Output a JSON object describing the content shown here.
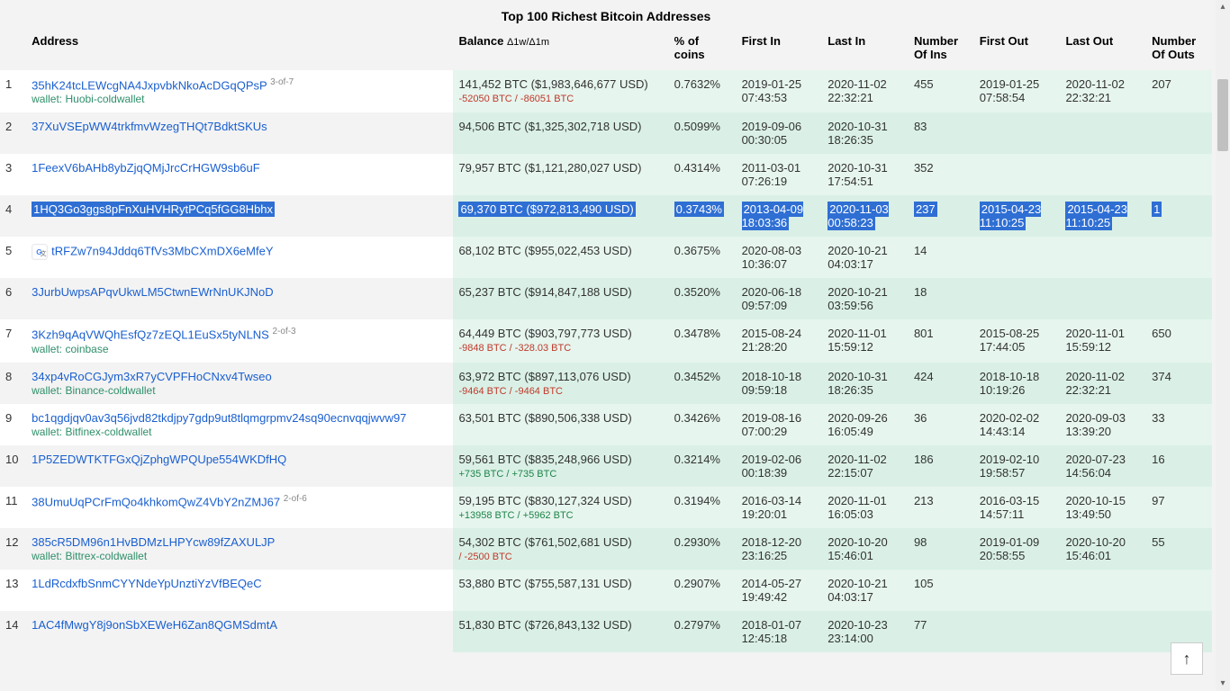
{
  "title": "Top 100 Richest Bitcoin Addresses",
  "columns": {
    "idx": "",
    "address": "Address",
    "balance": "Balance",
    "balance_sub": "Δ1w/Δ1m",
    "pct": "% of coins",
    "first_in": "First In",
    "last_in": "Last In",
    "n_ins": "Number Of Ins",
    "first_out": "First Out",
    "last_out": "Last Out",
    "n_outs": "Number Of Outs"
  },
  "colors": {
    "link": "#1a5fcf",
    "wallet": "#2f8f6a",
    "delta_neg": "#c0392b",
    "delta_pos": "#1e8449",
    "highlight_bg": "#2f6fd4",
    "highlight_fg": "#ffffff",
    "row_odd": "#ffffff",
    "row_even": "#f3f3f3",
    "tint_odd": "#e6f5ee",
    "tint_even": "#daf0e6"
  },
  "highlight_row_index": 3,
  "rows": [
    {
      "n": "1",
      "address": "35hK24tcLEWcgNA4JxpvbkNkoAcDGqQPsP",
      "addr_suffix": "3-of-7",
      "wallet": "wallet: Huobi-coldwallet",
      "balance": "141,452 BTC ($1,983,646,677 USD)",
      "delta": "-52050 BTC / -86051 BTC",
      "delta_sign": "neg",
      "pct": "0.7632%",
      "first_in": "2019-01-25 07:43:53",
      "last_in": "2020-11-02 22:32:21",
      "n_ins": "455",
      "first_out": "2019-01-25 07:58:54",
      "last_out": "2020-11-02 22:32:21",
      "n_outs": "207"
    },
    {
      "n": "2",
      "address": "37XuVSEpWW4trkfmvWzegTHQt7BdktSKUs",
      "balance": "94,506 BTC ($1,325,302,718 USD)",
      "pct": "0.5099%",
      "first_in": "2019-09-06 00:30:05",
      "last_in": "2020-10-31 18:26:35",
      "n_ins": "83"
    },
    {
      "n": "3",
      "address": "1FeexV6bAHb8ybZjqQMjJrcCrHGW9sb6uF",
      "balance": "79,957 BTC ($1,121,280,027 USD)",
      "pct": "0.4314%",
      "first_in": "2011-03-01 07:26:19",
      "last_in": "2020-10-31 17:54:51",
      "n_ins": "352"
    },
    {
      "n": "4",
      "address": "1HQ3Go3ggs8pFnXuHVHRytPCq5fGG8Hbhx",
      "balance": "69,370 BTC ($972,813,490 USD)",
      "pct": "0.3743%",
      "first_in": "2013-04-09 18:03:36",
      "last_in": "2020-11-03 00:58:23",
      "n_ins": "237",
      "first_out": "2015-04-23 11:10:25",
      "last_out": "2015-04-23 11:10:25",
      "n_outs": "1"
    },
    {
      "n": "5",
      "address": "tRFZw7n94Jddq6TfVs3MbCXmDX6eMfeY",
      "has_icon": true,
      "balance": "68,102 BTC ($955,022,453 USD)",
      "pct": "0.3675%",
      "first_in": "2020-08-03 10:36:07",
      "last_in": "2020-10-21 04:03:17",
      "n_ins": "14"
    },
    {
      "n": "6",
      "address": "3JurbUwpsAPqvUkwLM5CtwnEWrNnUKJNoD",
      "balance": "65,237 BTC ($914,847,188 USD)",
      "pct": "0.3520%",
      "first_in": "2020-06-18 09:57:09",
      "last_in": "2020-10-21 03:59:56",
      "n_ins": "18"
    },
    {
      "n": "7",
      "address": "3Kzh9qAqVWQhEsfQz7zEQL1EuSx5tyNLNS",
      "addr_suffix": "2-of-3",
      "wallet": "wallet: coinbase",
      "balance": "64,449 BTC ($903,797,773 USD)",
      "delta": "-9848 BTC / -328.03 BTC",
      "delta_sign": "neg",
      "pct": "0.3478%",
      "first_in": "2015-08-24 21:28:20",
      "last_in": "2020-11-01 15:59:12",
      "n_ins": "801",
      "first_out": "2015-08-25 17:44:05",
      "last_out": "2020-11-01 15:59:12",
      "n_outs": "650"
    },
    {
      "n": "8",
      "address": "34xp4vRoCGJym3xR7yCVPFHoCNxv4Twseo",
      "wallet": "wallet: Binance-coldwallet",
      "balance": "63,972 BTC ($897,113,076 USD)",
      "delta": "-9464 BTC / -9464 BTC",
      "delta_sign": "neg",
      "pct": "0.3452%",
      "first_in": "2018-10-18 09:59:18",
      "last_in": "2020-10-31 18:26:35",
      "n_ins": "424",
      "first_out": "2018-10-18 10:19:26",
      "last_out": "2020-11-02 22:32:21",
      "n_outs": "374"
    },
    {
      "n": "9",
      "address": "bc1qgdjqv0av3q56jvd82tkdjpy7gdp9ut8tlqmgrpmv24sq90ecnvqqjwvw97",
      "wallet": "wallet: Bitfinex-coldwallet",
      "balance": "63,501 BTC ($890,506,338 USD)",
      "pct": "0.3426%",
      "first_in": "2019-08-16 07:00:29",
      "last_in": "2020-09-26 16:05:49",
      "n_ins": "36",
      "first_out": "2020-02-02 14:43:14",
      "last_out": "2020-09-03 13:39:20",
      "n_outs": "33"
    },
    {
      "n": "10",
      "address": "1P5ZEDWTKTFGxQjZphgWPQUpe554WKDfHQ",
      "balance": "59,561 BTC ($835,248,966 USD)",
      "delta": "+735 BTC / +735 BTC",
      "delta_sign": "pos",
      "pct": "0.3214%",
      "first_in": "2019-02-06 00:18:39",
      "last_in": "2020-11-02 22:15:07",
      "n_ins": "186",
      "first_out": "2019-02-10 19:58:57",
      "last_out": "2020-07-23 14:56:04",
      "n_outs": "16"
    },
    {
      "n": "11",
      "address": "38UmuUqPCrFmQo4khkomQwZ4VbY2nZMJ67",
      "addr_suffix": "2-of-6",
      "balance": "59,195 BTC ($830,127,324 USD)",
      "delta": "+13958 BTC / +5962 BTC",
      "delta_sign": "pos",
      "pct": "0.3194%",
      "first_in": "2016-03-14 19:20:01",
      "last_in": "2020-11-01 16:05:03",
      "n_ins": "213",
      "first_out": "2016-03-15 14:57:11",
      "last_out": "2020-10-15 13:49:50",
      "n_outs": "97"
    },
    {
      "n": "12",
      "address": "385cR5DM96n1HvBDMzLHPYcw89fZAXULJP",
      "wallet": "wallet: Bittrex-coldwallet",
      "balance": "54,302 BTC ($761,502,681 USD)",
      "delta": "/ -2500 BTC",
      "delta_sign": "neg",
      "pct": "0.2930%",
      "first_in": "2018-12-20 23:16:25",
      "last_in": "2020-10-20 15:46:01",
      "n_ins": "98",
      "first_out": "2019-01-09 20:58:55",
      "last_out": "2020-10-20 15:46:01",
      "n_outs": "55"
    },
    {
      "n": "13",
      "address": "1LdRcdxfbSnmCYYNdeYpUnztiYzVfBEQeC",
      "balance": "53,880 BTC ($755,587,131 USD)",
      "pct": "0.2907%",
      "first_in": "2014-05-27 19:49:42",
      "last_in": "2020-10-21 04:03:17",
      "n_ins": "105"
    },
    {
      "n": "14",
      "address": "1AC4fMwgY8j9onSbXEWeH6Zan8QGMSdmtA",
      "balance": "51,830 BTC ($726,843,132 USD)",
      "pct": "0.2797%",
      "first_in": "2018-01-07 12:45:18",
      "last_in": "2020-10-23 23:14:00",
      "n_ins": "77"
    }
  ]
}
